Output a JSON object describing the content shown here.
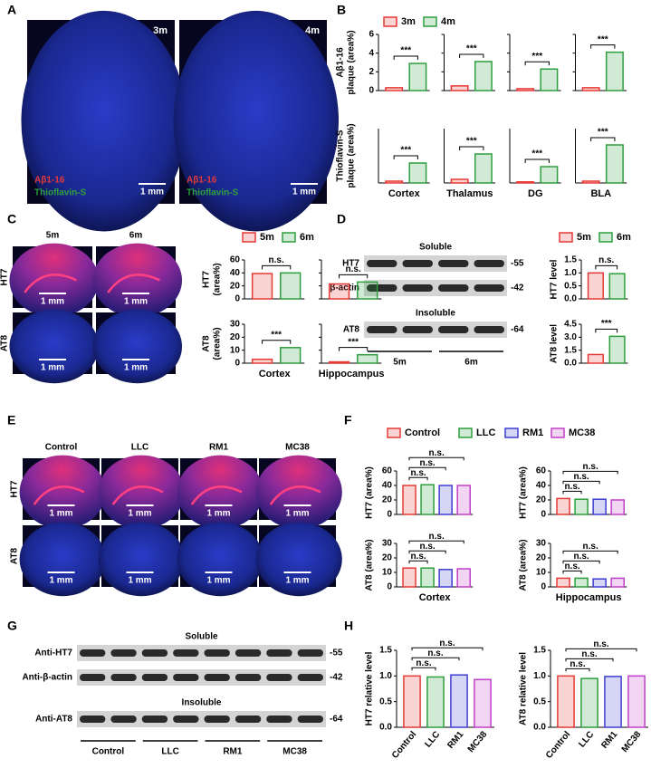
{
  "panel_labels": [
    "A",
    "B",
    "C",
    "D",
    "E",
    "F",
    "G",
    "H"
  ],
  "panel_a": {
    "images": [
      {
        "label": "3m",
        "stains": [
          "Aβ1-16",
          "Thioflavin-S"
        ],
        "scale_bar": "1 mm"
      },
      {
        "label": "4m",
        "stains": [
          "Aβ1-16",
          "Thioflavin-S"
        ],
        "scale_bar": "1 mm"
      }
    ]
  },
  "panel_c": {
    "columns": [
      "5m",
      "6m"
    ],
    "rows": [
      "HT7",
      "AT8"
    ],
    "scale_bar": "1 mm"
  },
  "panel_d": {
    "sections": [
      {
        "title": "Soluble",
        "rows": [
          {
            "label": "HT7",
            "marker": "-55"
          },
          {
            "label": "β-actin",
            "marker": "-42"
          }
        ]
      },
      {
        "title": "Insoluble",
        "rows": [
          {
            "label": "AT8",
            "marker": "-64"
          }
        ]
      }
    ],
    "groups": [
      "5m",
      "6m"
    ]
  },
  "panel_e": {
    "columns": [
      "Control",
      "LLC",
      "RM1",
      "MC38"
    ],
    "rows": [
      "HT7",
      "AT8"
    ],
    "scale_bar": "1 mm"
  },
  "panel_g": {
    "sections": [
      {
        "title": "Soluble",
        "rows": [
          {
            "label": "Anti-HT7",
            "marker": "-55"
          },
          {
            "label": "Anti-β-actin",
            "marker": "-42"
          }
        ]
      },
      {
        "title": "Insoluble",
        "rows": [
          {
            "label": "Anti-AT8",
            "marker": "-64"
          }
        ]
      }
    ],
    "groups": [
      "Control",
      "LLC",
      "RM1",
      "MC38"
    ]
  },
  "chart_data": [
    {
      "type": "bar",
      "ylabel": [
        "Aβ1-16",
        "plaque (area%)"
      ],
      "categories": [
        null,
        null,
        null,
        null
      ],
      "series": [
        {
          "name": "3m",
          "color": "#e53935",
          "values": [
            0.3,
            0.5,
            0.2,
            0.3
          ]
        },
        {
          "name": "4m",
          "color": "#2e9e3e",
          "values": [
            2.9,
            3.1,
            2.3,
            4.1
          ]
        }
      ],
      "ylim": [
        0,
        6
      ],
      "yticks": [
        0,
        2,
        4,
        6
      ],
      "significance": [
        "***",
        "***",
        "***",
        "***"
      ]
    },
    {
      "type": "bar",
      "ylabel": [
        "Thioflavin-S",
        "plaque (area%)"
      ],
      "categories": [
        "Cortex",
        "Thalamus",
        "DG",
        "BLA"
      ],
      "series": [
        {
          "color": "#e53935",
          "values": [
            0.05,
            0.1,
            0.03,
            0.05
          ]
        },
        {
          "color": "#2e9e3e",
          "values": [
            0.55,
            0.8,
            0.45,
            1.05
          ]
        }
      ],
      "ylim": [
        0,
        1.5
      ],
      "significance": [
        "***",
        "***",
        "***",
        "***"
      ]
    },
    {
      "type": "bar",
      "ylabel": [
        "HT7",
        "(area%)"
      ],
      "categories": [
        null,
        null
      ],
      "series": [
        {
          "name": "5m",
          "color": "#e53935",
          "values": [
            39,
            23
          ]
        },
        {
          "name": "6m",
          "color": "#2e9e3e",
          "values": [
            40,
            26
          ]
        }
      ],
      "ylim": [
        0,
        60
      ],
      "yticks": [
        0,
        20,
        40,
        60
      ],
      "significance": [
        "n.s.",
        "n.s."
      ]
    },
    {
      "type": "bar",
      "ylabel": [
        "AT8",
        "(area%)"
      ],
      "categories": [
        "Cortex",
        "Hippocampus"
      ],
      "series": [
        {
          "color": "#e53935",
          "values": [
            3,
            1
          ]
        },
        {
          "color": "#2e9e3e",
          "values": [
            12,
            6.5
          ]
        }
      ],
      "ylim": [
        0,
        30
      ],
      "yticks": [
        0,
        10,
        20,
        30
      ],
      "significance": [
        "***",
        "***"
      ]
    },
    {
      "type": "bar",
      "ylabel": [
        "HT7 level"
      ],
      "categories": [
        null
      ],
      "series": [
        {
          "name": "5m",
          "color": "#e53935",
          "values": [
            1.0
          ]
        },
        {
          "name": "6m",
          "color": "#2e9e3e",
          "values": [
            0.97
          ]
        }
      ],
      "ylim": [
        0,
        1.5
      ],
      "yticks": [
        {
          "value": 0,
          "label": "0.0"
        },
        {
          "value": 0.5,
          "label": "0.5"
        },
        {
          "value": 1,
          "label": "1.0"
        },
        {
          "value": 1.5,
          "label": "1.5"
        }
      ],
      "significance": [
        "n.s."
      ]
    },
    {
      "type": "bar",
      "ylabel": [
        "AT8 level"
      ],
      "categories": [
        null
      ],
      "series": [
        {
          "color": "#e53935",
          "values": [
            1.0
          ]
        },
        {
          "color": "#2e9e3e",
          "values": [
            3.1
          ]
        }
      ],
      "ylim": [
        0,
        4.5
      ],
      "yticks": [
        {
          "value": 0,
          "label": "0.0"
        },
        {
          "value": 1.5,
          "label": "1.5"
        },
        {
          "value": 3,
          "label": "3.0"
        },
        {
          "value": 4.5,
          "label": "4.5"
        }
      ],
      "significance": [
        "***"
      ]
    },
    {
      "type": "bar",
      "ylabel": [
        "HT7 (area%)"
      ],
      "categories": [
        null
      ],
      "series": [
        {
          "name": "Control",
          "color": "#e53935",
          "values": [
            40
          ]
        },
        {
          "name": "LLC",
          "color": "#2e9e3e",
          "values": [
            41
          ]
        },
        {
          "name": "RM1",
          "color": "#3f3fd0",
          "values": [
            40
          ]
        },
        {
          "name": "MC38",
          "color": "#c040c8",
          "values": [
            40
          ]
        }
      ],
      "ylim": [
        0,
        60
      ],
      "yticks": [
        0,
        20,
        40,
        60
      ],
      "comparisons": [
        "n.s.",
        "n.s.",
        "n.s."
      ]
    },
    {
      "type": "bar",
      "ylabel": [
        "HT7 (area%)"
      ],
      "categories": [
        null
      ],
      "series": [
        {
          "color": "#e53935",
          "values": [
            22
          ]
        },
        {
          "color": "#2e9e3e",
          "values": [
            21
          ]
        },
        {
          "color": "#3f3fd0",
          "values": [
            21
          ]
        },
        {
          "color": "#c040c8",
          "values": [
            20
          ]
        }
      ],
      "ylim": [
        0,
        60
      ],
      "yticks": [
        0,
        20,
        40,
        60
      ],
      "comparisons": [
        "n.s.",
        "n.s.",
        "n.s."
      ]
    },
    {
      "type": "bar",
      "ylabel": [
        "AT8 (area%)"
      ],
      "categories": [
        "Cortex"
      ],
      "series": [
        {
          "color": "#e53935",
          "values": [
            13
          ]
        },
        {
          "color": "#2e9e3e",
          "values": [
            13
          ]
        },
        {
          "color": "#3f3fd0",
          "values": [
            12
          ]
        },
        {
          "color": "#c040c8",
          "values": [
            12.5
          ]
        }
      ],
      "ylim": [
        0,
        30
      ],
      "yticks": [
        0,
        10,
        20,
        30
      ],
      "comparisons": [
        "n.s.",
        "n.s.",
        "n.s."
      ]
    },
    {
      "type": "bar",
      "ylabel": [
        "AT8 (area%)"
      ],
      "categories": [
        "Hippocampus"
      ],
      "series": [
        {
          "color": "#e53935",
          "values": [
            6
          ]
        },
        {
          "color": "#2e9e3e",
          "values": [
            6
          ]
        },
        {
          "color": "#3f3fd0",
          "values": [
            5.5
          ]
        },
        {
          "color": "#c040c8",
          "values": [
            6
          ]
        }
      ],
      "ylim": [
        0,
        30
      ],
      "yticks": [
        0,
        10,
        20,
        30
      ],
      "comparisons": [
        "n.s.",
        "n.s.",
        "n.s."
      ]
    },
    {
      "type": "bar",
      "ylabel": [
        "HT7 relative level"
      ],
      "categories": [
        "Control",
        "LLC",
        "RM1",
        "MC38"
      ],
      "series": [
        {
          "values": [
            1.0,
            0.98,
            1.02,
            0.93
          ]
        }
      ],
      "colors": [
        "#e53935",
        "#2e9e3e",
        "#3f3fd0",
        "#c040c8"
      ],
      "ylim": [
        0,
        1.5
      ],
      "yticks": [
        {
          "value": 0,
          "label": "0.0"
        },
        {
          "value": 0.5,
          "label": "0.5"
        },
        {
          "value": 1,
          "label": "1.0"
        },
        {
          "value": 1.5,
          "label": "1.5"
        }
      ],
      "comparisons": [
        "n.s.",
        "n.s.",
        "n.s."
      ]
    },
    {
      "type": "bar",
      "ylabel": [
        "AT8 relative level"
      ],
      "categories": [
        "Control",
        "LLC",
        "RM1",
        "MC38"
      ],
      "series": [
        {
          "values": [
            1.0,
            0.95,
            0.99,
            1.0
          ]
        }
      ],
      "colors": [
        "#e53935",
        "#2e9e3e",
        "#3f3fd0",
        "#c040c8"
      ],
      "ylim": [
        0,
        1.5
      ],
      "yticks": [
        {
          "value": 0,
          "label": "0.0"
        },
        {
          "value": 0.5,
          "label": "0.5"
        },
        {
          "value": 1,
          "label": "1.0"
        },
        {
          "value": 1.5,
          "label": "1.5"
        }
      ],
      "comparisons": [
        "n.s.",
        "n.s.",
        "n.s."
      ]
    }
  ]
}
